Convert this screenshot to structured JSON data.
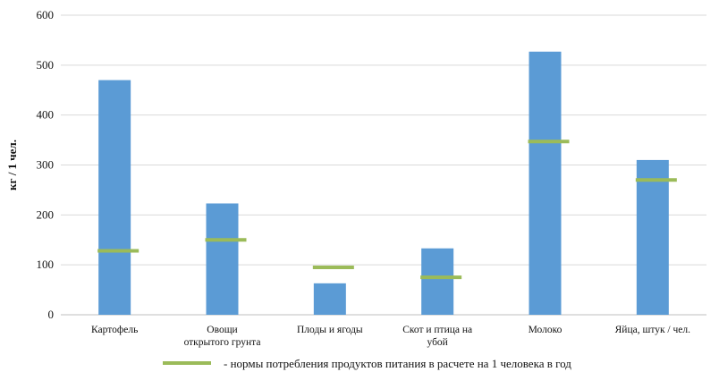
{
  "chart_data": {
    "type": "bar",
    "ylabel": "кг / 1 чел.",
    "xlabel": "",
    "ylim": [
      0,
      600
    ],
    "yticks": [
      "0",
      "100",
      "200",
      "300",
      "400",
      "500",
      "600"
    ],
    "grid": true,
    "categories": [
      [
        "Картофель"
      ],
      [
        "Овощи",
        "открытого грунта"
      ],
      [
        "Плоды и ягоды"
      ],
      [
        "Скот и птица на",
        "убой"
      ],
      [
        "Молоко"
      ],
      [
        "Яйца, штук  / чел."
      ]
    ],
    "series": [
      {
        "type": "bar",
        "values": [
          470,
          223,
          63,
          133,
          527,
          310
        ],
        "color": "#5b9bd5"
      },
      {
        "name": "- нормы потребления продуктов питания в расчете на 1 человека в год",
        "type": "marker",
        "values": [
          128,
          150,
          95,
          75,
          347,
          270
        ],
        "color": "#9bbb59"
      }
    ],
    "legend_position": "bottom-right"
  }
}
